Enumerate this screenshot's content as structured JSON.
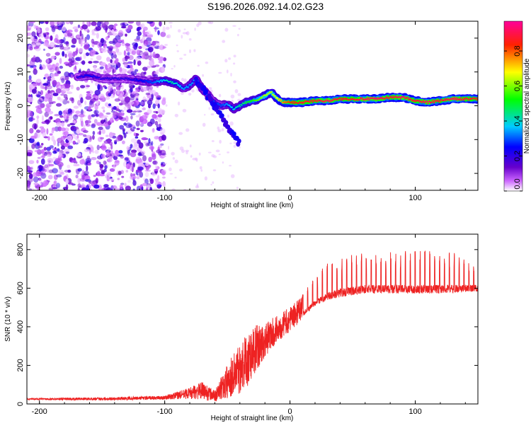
{
  "title": "S196.2026.092.14.02.G23",
  "chart_data": [
    {
      "type": "heatmap",
      "xlabel": "Height of straight line (km)",
      "ylabel": "Frequency (Hz)",
      "xlim": [
        -210,
        150
      ],
      "ylim": [
        -25,
        25
      ],
      "xticks": [
        -200,
        -100,
        0,
        100
      ],
      "yticks": [
        -20,
        -10,
        0,
        10,
        20
      ],
      "colorbar": {
        "label": "Normalized spectral amplitude",
        "range": [
          0,
          0.97
        ],
        "ticks": [
          0.0,
          0.2,
          0.4,
          0.6,
          0.8
        ],
        "tick_labels": [
          "0.0",
          "0.2",
          "0.4",
          "0.6",
          "0.8"
        ],
        "colors": [
          "#ffffff",
          "#cc66ff",
          "#6600cc",
          "#0000ff",
          "#00ffff",
          "#00ff00",
          "#ffff00",
          "#ff0000",
          "#ff0099"
        ]
      },
      "ridge": {
        "x": [
          -170,
          -160,
          -150,
          -140,
          -130,
          -120,
          -110,
          -100,
          -95,
          -90,
          -85,
          -80,
          -75,
          -70,
          -65,
          -60,
          -55,
          -50,
          -45,
          -40,
          -35,
          -30,
          -25,
          -20,
          -15,
          -10,
          -5,
          0,
          10,
          20,
          30,
          40,
          50,
          60,
          70,
          80,
          90,
          100,
          110,
          120,
          130,
          140,
          150
        ],
        "freq": [
          8.5,
          9,
          8,
          8,
          8,
          7.5,
          7,
          7.5,
          7,
          6.5,
          5,
          6,
          8,
          5,
          3,
          1,
          0,
          0.5,
          -1,
          0,
          1,
          1.5,
          2,
          3,
          4,
          2,
          1,
          1,
          1,
          1.5,
          1.5,
          2,
          2,
          2,
          2,
          2.5,
          2.5,
          1.5,
          1,
          1.5,
          2,
          2,
          2
        ],
        "amplitude": [
          0.2,
          0.25,
          0.2,
          0.2,
          0.2,
          0.25,
          0.3,
          0.4,
          0.45,
          0.4,
          0.35,
          0.35,
          0.35,
          0.35,
          0.3,
          0.3,
          0.3,
          0.35,
          0.4,
          0.45,
          0.5,
          0.55,
          0.6,
          0.65,
          0.65,
          0.7,
          0.8,
          0.85,
          0.9,
          0.9,
          0.95,
          0.9,
          0.9,
          0.95,
          0.95,
          0.9,
          0.95,
          0.9,
          0.95,
          0.9,
          0.95,
          0.9,
          0.9
        ]
      },
      "noise_extent_km": [
        -210,
        -100
      ]
    },
    {
      "type": "line",
      "xlabel": "Height of straight line (km)",
      "ylabel": "SNR (10 * v/v)",
      "xlim": [
        -210,
        150
      ],
      "ylim": [
        0,
        880
      ],
      "xticks": [
        -200,
        -100,
        0,
        100
      ],
      "yticks": [
        0,
        200,
        400,
        600,
        800
      ],
      "color": "#ee2222",
      "envelope": {
        "x": [
          -210,
          -150,
          -100,
          -90,
          -80,
          -70,
          -60,
          -50,
          -40,
          -35,
          -30,
          -20,
          -10,
          0,
          10,
          20,
          30,
          40,
          50,
          60,
          80,
          100,
          120,
          150
        ],
        "base": [
          25,
          25,
          30,
          40,
          50,
          60,
          35,
          90,
          150,
          180,
          230,
          300,
          370,
          420,
          480,
          540,
          580,
          600,
          610,
          620,
          620,
          620,
          620,
          620
        ],
        "spread": [
          10,
          15,
          20,
          40,
          60,
          90,
          60,
          200,
          300,
          320,
          300,
          200,
          160,
          140,
          140,
          170,
          220,
          250,
          250,
          250,
          250,
          250,
          250,
          200
        ]
      }
    }
  ]
}
